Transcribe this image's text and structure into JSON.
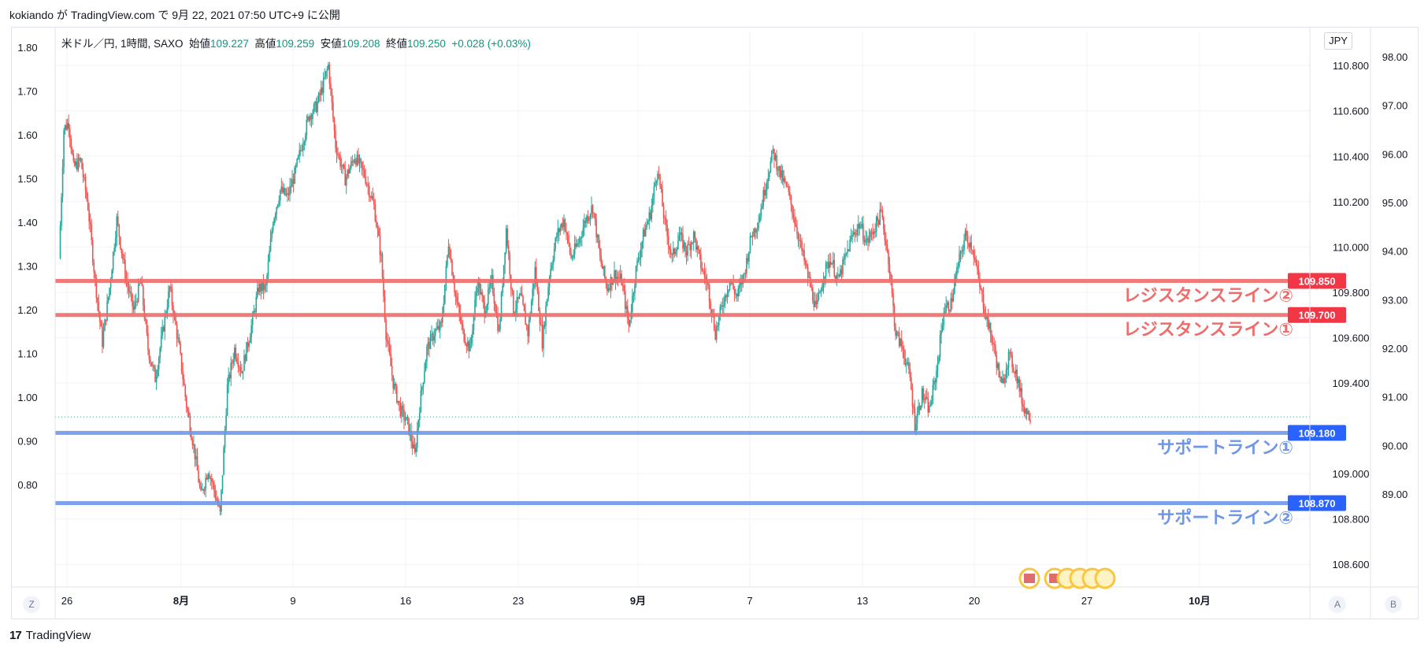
{
  "header": {
    "title": "kokiando が TradingView.com で 9月 22, 2021 07:50 UTC+9 に公開"
  },
  "legend": {
    "symbol": "米ドル／円, 1時間, SAXO",
    "open_label": "始値",
    "open": "109.227",
    "high_label": "高値",
    "high": "109.259",
    "low_label": "安値",
    "low": "109.208",
    "close_label": "終値",
    "close": "109.250",
    "change": "+0.028 (+0.03%)"
  },
  "currency_button": "JPY",
  "axis_buttons": {
    "left": "Z",
    "auto": "A",
    "log": "B"
  },
  "footer": {
    "brand": "TradingView"
  },
  "colors": {
    "resistance": "#ef6c6a",
    "support": "#6f97e8",
    "up": "#26a69a",
    "down": "#ef5350"
  },
  "chart_data": {
    "type": "candlestick",
    "symbol": "USDJPY",
    "timeframe": "1時間",
    "x_ticks": [
      "26",
      "8月",
      "9",
      "16",
      "23",
      "9月",
      "7",
      "13",
      "20",
      "27",
      "10月"
    ],
    "left_axis_ticks": [
      "1.80",
      "1.70",
      "1.60",
      "1.50",
      "1.40",
      "1.30",
      "1.20",
      "1.10",
      "1.00",
      "0.90",
      "0.80"
    ],
    "price_axis_ticks": [
      "110.800",
      "110.600",
      "110.400",
      "110.200",
      "110.000",
      "109.800",
      "109.600",
      "109.400",
      "109.000",
      "108.800",
      "108.600"
    ],
    "right_axis_ticks": [
      "98.00",
      "97.00",
      "96.00",
      "95.00",
      "94.00",
      "93.00",
      "92.00",
      "91.00",
      "90.00",
      "89.00"
    ],
    "y_range": [
      108.5,
      110.95
    ],
    "last_price": 109.25,
    "price_path": [
      [
        0,
        109.95
      ],
      [
        4,
        110.52
      ],
      [
        8,
        110.55
      ],
      [
        12,
        110.35
      ],
      [
        18,
        110.38
      ],
      [
        24,
        110.18
      ],
      [
        30,
        109.85
      ],
      [
        36,
        109.58
      ],
      [
        42,
        109.82
      ],
      [
        48,
        110.12
      ],
      [
        56,
        109.85
      ],
      [
        62,
        109.72
      ],
      [
        68,
        109.85
      ],
      [
        74,
        109.55
      ],
      [
        80,
        109.42
      ],
      [
        86,
        109.62
      ],
      [
        92,
        109.82
      ],
      [
        100,
        109.55
      ],
      [
        106,
        109.3
      ],
      [
        112,
        109.12
      ],
      [
        118,
        108.9
      ],
      [
        124,
        109.02
      ],
      [
        128,
        108.95
      ],
      [
        134,
        108.82
      ],
      [
        140,
        109.38
      ],
      [
        146,
        109.55
      ],
      [
        152,
        109.45
      ],
      [
        160,
        109.65
      ],
      [
        166,
        109.82
      ],
      [
        172,
        109.82
      ],
      [
        178,
        110.12
      ],
      [
        184,
        110.25
      ],
      [
        190,
        110.22
      ],
      [
        196,
        110.32
      ],
      [
        202,
        110.45
      ],
      [
        208,
        110.58
      ],
      [
        214,
        110.62
      ],
      [
        220,
        110.72
      ],
      [
        224,
        110.8
      ],
      [
        230,
        110.45
      ],
      [
        238,
        110.3
      ],
      [
        246,
        110.4
      ],
      [
        254,
        110.32
      ],
      [
        262,
        110.18
      ],
      [
        268,
        109.95
      ],
      [
        272,
        109.62
      ],
      [
        278,
        109.4
      ],
      [
        284,
        109.28
      ],
      [
        290,
        109.22
      ],
      [
        296,
        109.08
      ],
      [
        300,
        109.3
      ],
      [
        306,
        109.55
      ],
      [
        312,
        109.62
      ],
      [
        318,
        109.65
      ],
      [
        324,
        110.02
      ],
      [
        330,
        109.78
      ],
      [
        336,
        109.62
      ],
      [
        342,
        109.55
      ],
      [
        348,
        109.85
      ],
      [
        354,
        109.72
      ],
      [
        360,
        109.85
      ],
      [
        366,
        109.62
      ],
      [
        372,
        110.08
      ],
      [
        378,
        109.72
      ],
      [
        384,
        109.78
      ],
      [
        390,
        109.62
      ],
      [
        396,
        109.9
      ],
      [
        402,
        109.58
      ],
      [
        408,
        109.88
      ],
      [
        414,
        110.05
      ],
      [
        420,
        110.12
      ],
      [
        426,
        109.95
      ],
      [
        432,
        110.02
      ],
      [
        438,
        110.12
      ],
      [
        444,
        110.18
      ],
      [
        450,
        109.95
      ],
      [
        456,
        109.82
      ],
      [
        462,
        109.88
      ],
      [
        468,
        109.85
      ],
      [
        474,
        109.65
      ],
      [
        480,
        109.9
      ],
      [
        486,
        110.05
      ],
      [
        492,
        110.15
      ],
      [
        498,
        110.35
      ],
      [
        504,
        110.1
      ],
      [
        510,
        109.95
      ],
      [
        516,
        110.05
      ],
      [
        522,
        109.98
      ],
      [
        528,
        110.05
      ],
      [
        534,
        109.92
      ],
      [
        540,
        109.82
      ],
      [
        546,
        109.62
      ],
      [
        552,
        109.75
      ],
      [
        558,
        109.85
      ],
      [
        564,
        109.78
      ],
      [
        570,
        109.88
      ],
      [
        576,
        110.05
      ],
      [
        582,
        110.12
      ],
      [
        588,
        110.28
      ],
      [
        594,
        110.42
      ],
      [
        600,
        110.32
      ],
      [
        606,
        110.25
      ],
      [
        612,
        110.12
      ],
      [
        618,
        109.98
      ],
      [
        624,
        109.85
      ],
      [
        630,
        109.72
      ],
      [
        636,
        109.88
      ],
      [
        642,
        109.95
      ],
      [
        648,
        109.85
      ],
      [
        654,
        109.95
      ],
      [
        660,
        110.05
      ],
      [
        666,
        110.1
      ],
      [
        672,
        110.02
      ],
      [
        678,
        110.08
      ],
      [
        684,
        110.15
      ],
      [
        690,
        109.95
      ],
      [
        696,
        109.62
      ],
      [
        702,
        109.55
      ],
      [
        708,
        109.42
      ],
      [
        712,
        109.22
      ],
      [
        718,
        109.35
      ],
      [
        724,
        109.28
      ],
      [
        730,
        109.45
      ],
      [
        736,
        109.72
      ],
      [
        742,
        109.75
      ],
      [
        748,
        109.92
      ],
      [
        754,
        110.05
      ],
      [
        760,
        110.0
      ],
      [
        766,
        109.82
      ],
      [
        772,
        109.68
      ],
      [
        778,
        109.55
      ],
      [
        784,
        109.38
      ],
      [
        790,
        109.52
      ],
      [
        796,
        109.45
      ],
      [
        802,
        109.3
      ],
      [
        808,
        109.25
      ]
    ],
    "horizontal_lines": [
      {
        "price": 109.85,
        "tag": "109.850",
        "label": "レジスタンスライン②",
        "kind": "resistance"
      },
      {
        "price": 109.7,
        "tag": "109.700",
        "label": "レジスタンスライン①",
        "kind": "resistance"
      },
      {
        "price": 109.18,
        "tag": "109.180",
        "label": "サポートライン①",
        "kind": "support"
      },
      {
        "price": 108.87,
        "tag": "108.870",
        "label": "サポートライン②",
        "kind": "support"
      }
    ]
  }
}
